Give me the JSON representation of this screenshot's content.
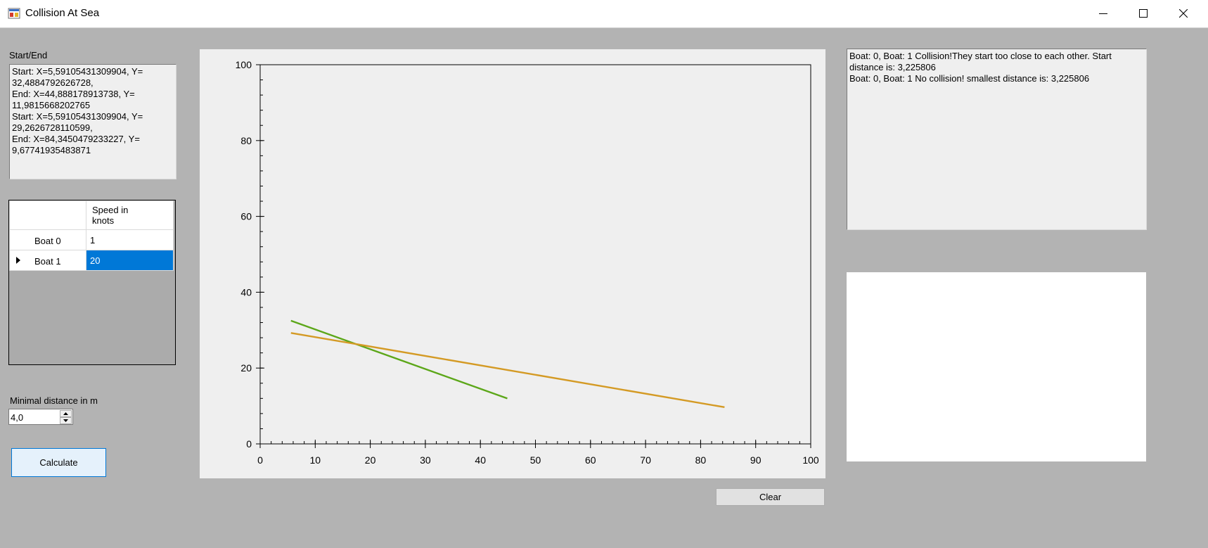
{
  "window": {
    "title": "Collision At Sea",
    "icon": "app-icon",
    "controls": [
      "minimize-icon",
      "maximize-icon",
      "close-icon"
    ]
  },
  "start_end": {
    "label": "Start/End",
    "text": "Start: X=5,59105431309904, Y=\n32,4884792626728,\nEnd: X=44,888178913738, Y=\n11,9815668202765\nStart: X=5,59105431309904, Y=\n29,2626728110599,\nEnd: X=84,3450479233227, Y=\n9,67741935483871"
  },
  "speed_table": {
    "column_header": "Speed in\nknots",
    "rows": [
      {
        "label": "Boat 0",
        "value": "1",
        "selected": false
      },
      {
        "label": "Boat 1",
        "value": "20",
        "selected": true
      }
    ]
  },
  "min_distance": {
    "label": "Minimal distance in m",
    "value": "4,0"
  },
  "buttons": {
    "calculate": "Calculate",
    "clear": "Clear"
  },
  "results": {
    "text": "Boat: 0, Boat: 1 Collision!They start too close to each other. Start\ndistance is: 3,225806\nBoat: 0, Boat: 1 No collision! smallest distance is: 3,225806"
  },
  "colors": {
    "boat0": "#5ca719",
    "boat1": "#d49a24"
  },
  "chart_data": {
    "type": "line",
    "xlim": [
      0,
      100
    ],
    "ylim": [
      0,
      100
    ],
    "x_ticks": [
      0,
      10,
      20,
      30,
      40,
      50,
      60,
      70,
      80,
      90,
      100
    ],
    "y_ticks": [
      0,
      20,
      40,
      60,
      80,
      100
    ],
    "series": [
      {
        "name": "Boat 0",
        "x": [
          5.59105431309904,
          44.888178913738
        ],
        "y": [
          32.4884792626728,
          11.9815668202765
        ]
      },
      {
        "name": "Boat 1",
        "x": [
          5.59105431309904,
          84.3450479233227
        ],
        "y": [
          29.2626728110599,
          9.67741935483871
        ]
      }
    ]
  }
}
